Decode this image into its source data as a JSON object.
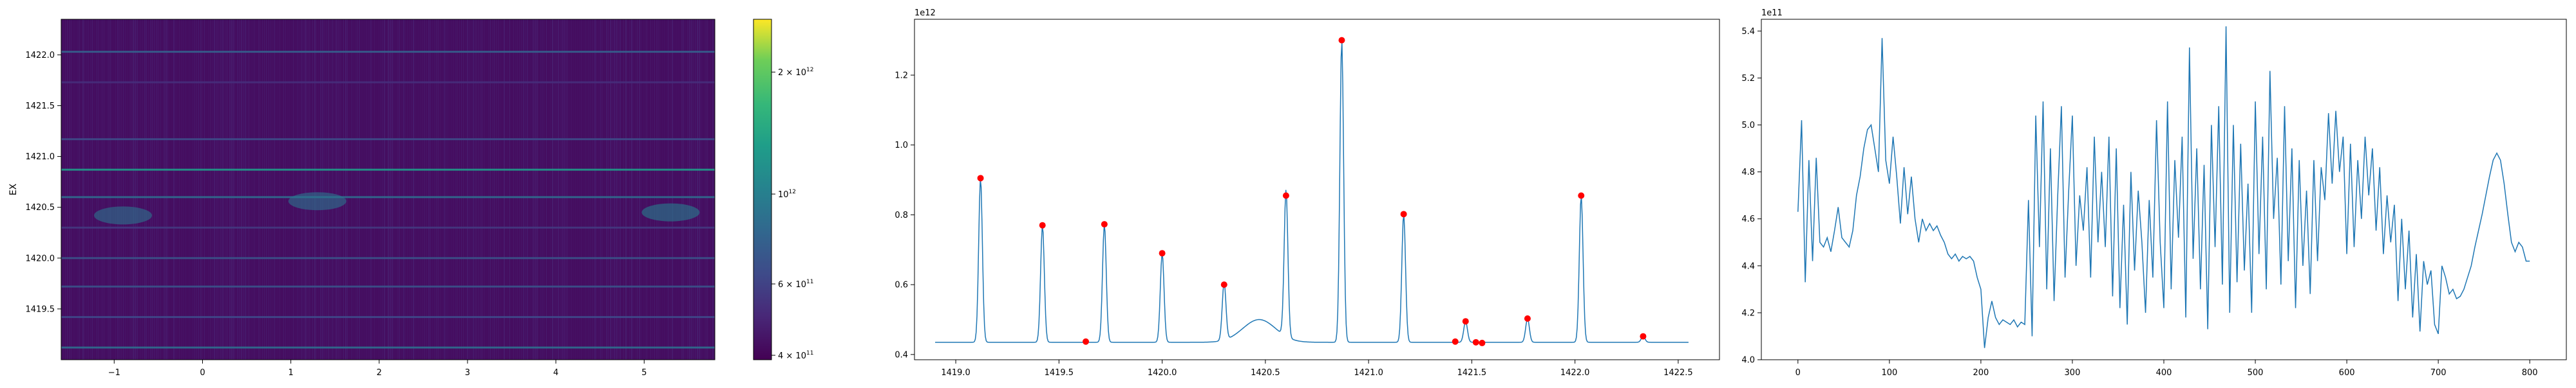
{
  "colors": {
    "line": "#1f77b4",
    "peak_marker": "#ff0000",
    "heatmap_low": "#440154",
    "heatmap_high": "#fde725"
  },
  "chart_data": [
    {
      "type": "heatmap",
      "ylabel": "EX",
      "xlim": [
        -1.6,
        5.8
      ],
      "ylim": [
        1419.0,
        1422.35
      ],
      "x_ticks": [
        -1,
        0,
        1,
        2,
        3,
        4,
        5
      ],
      "y_ticks": [
        1419.5,
        1420.0,
        1420.5,
        1421.0,
        1421.5,
        1422.0
      ],
      "x_tick_labels": [
        "−1",
        "0",
        "1",
        "2",
        "3",
        "4",
        "5"
      ],
      "y_tick_labels": [
        "1419.5",
        "1420.0",
        "1420.5",
        "1421.0",
        "1421.5",
        "1422.0"
      ],
      "colorscale": "viridis",
      "color_scale_type": "log",
      "colorbar_range": [
        390000000000.0,
        2700000000000.0
      ],
      "colorbar_ticks": [
        {
          "value": 400000000000.0,
          "base": "4 × 10",
          "exp": "11"
        },
        {
          "value": 600000000000.0,
          "base": "6 × 10",
          "exp": "11"
        },
        {
          "value": 1000000000000.0,
          "base": "10",
          "exp": "12"
        },
        {
          "value": 2000000000000.0,
          "base": "2 × 10",
          "exp": "12"
        }
      ],
      "horizontal_bands": [
        {
          "y": 1422.03,
          "value": 750000000000.0
        },
        {
          "y": 1421.73,
          "value": 520000000000.0
        },
        {
          "y": 1421.17,
          "value": 650000000000.0
        },
        {
          "y": 1420.87,
          "value": 1300000000000.0
        },
        {
          "y": 1420.6,
          "value": 850000000000.0
        },
        {
          "y": 1420.3,
          "value": 560000000000.0
        },
        {
          "y": 1420.0,
          "value": 680000000000.0
        },
        {
          "y": 1419.72,
          "value": 680000000000.0
        },
        {
          "y": 1419.42,
          "value": 630000000000.0
        },
        {
          "y": 1419.12,
          "value": 860000000000.0
        }
      ],
      "blobs": [
        {
          "x": -0.9,
          "y": 1420.42,
          "value": 900000000000.0
        },
        {
          "x": 1.3,
          "y": 1420.56,
          "value": 900000000000.0
        },
        {
          "x": 5.3,
          "y": 1420.45,
          "value": 1000000000000.0
        }
      ]
    },
    {
      "type": "line",
      "offset_label": "1e12",
      "xlim": [
        1418.8,
        1422.7
      ],
      "ylim": [
        0.385,
        1.36
      ],
      "x_ticks": [
        1419.0,
        1419.5,
        1420.0,
        1420.5,
        1421.0,
        1421.5,
        1422.0,
        1422.5
      ],
      "x_tick_labels": [
        "1419.0",
        "1419.5",
        "1420.0",
        "1420.5",
        "1421.0",
        "1421.5",
        "1422.0",
        "1422.5"
      ],
      "y_ticks": [
        0.4,
        0.6,
        0.8,
        1.0,
        1.2
      ],
      "y_tick_labels": [
        "0.4",
        "0.6",
        "0.8",
        "1.0",
        "1.2"
      ],
      "baseline": 0.435,
      "x_start": 1418.9,
      "x_end": 1422.55,
      "peaks": [
        {
          "x": 1419.12,
          "y": 0.905
        },
        {
          "x": 1419.42,
          "y": 0.77
        },
        {
          "x": 1419.72,
          "y": 0.773
        },
        {
          "x": 1420.0,
          "y": 0.69
        },
        {
          "x": 1420.3,
          "y": 0.6
        },
        {
          "x": 1420.6,
          "y": 0.855
        },
        {
          "x": 1420.87,
          "y": 1.3
        },
        {
          "x": 1421.17,
          "y": 0.802
        },
        {
          "x": 1421.47,
          "y": 0.495
        },
        {
          "x": 1421.77,
          "y": 0.503
        },
        {
          "x": 1422.03,
          "y": 0.855
        },
        {
          "x": 1422.33,
          "y": 0.452
        }
      ],
      "bump": {
        "x": 1420.47,
        "y": 0.5,
        "width": 0.08
      },
      "markers": [
        {
          "x": 1419.12,
          "y": 0.905
        },
        {
          "x": 1419.42,
          "y": 0.77
        },
        {
          "x": 1419.63,
          "y": 0.437
        },
        {
          "x": 1419.72,
          "y": 0.773
        },
        {
          "x": 1420.0,
          "y": 0.69
        },
        {
          "x": 1420.3,
          "y": 0.6
        },
        {
          "x": 1420.6,
          "y": 0.855
        },
        {
          "x": 1420.87,
          "y": 1.3
        },
        {
          "x": 1421.17,
          "y": 0.802
        },
        {
          "x": 1421.42,
          "y": 0.437
        },
        {
          "x": 1421.47,
          "y": 0.495
        },
        {
          "x": 1421.52,
          "y": 0.435
        },
        {
          "x": 1421.55,
          "y": 0.433
        },
        {
          "x": 1421.77,
          "y": 0.503
        },
        {
          "x": 1422.03,
          "y": 0.855
        },
        {
          "x": 1422.33,
          "y": 0.452
        }
      ]
    },
    {
      "type": "line",
      "offset_label": "1e11",
      "xlim": [
        -40,
        840
      ],
      "ylim": [
        4.0,
        5.45
      ],
      "x_ticks": [
        0,
        100,
        200,
        300,
        400,
        500,
        600,
        700,
        800
      ],
      "x_tick_labels": [
        "0",
        "100",
        "200",
        "300",
        "400",
        "500",
        "600",
        "700",
        "800"
      ],
      "y_ticks": [
        4.0,
        4.2,
        4.4,
        4.6,
        4.8,
        5.0,
        5.2,
        5.4
      ],
      "y_tick_labels": [
        "4.0",
        "4.2",
        "4.4",
        "4.6",
        "4.8",
        "5.0",
        "5.2",
        "5.4"
      ],
      "series_points": [
        [
          0,
          4.63
        ],
        [
          4,
          5.02
        ],
        [
          8,
          4.33
        ],
        [
          12,
          4.85
        ],
        [
          16,
          4.42
        ],
        [
          20,
          4.86
        ],
        [
          24,
          4.5
        ],
        [
          28,
          4.48
        ],
        [
          32,
          4.52
        ],
        [
          36,
          4.46
        ],
        [
          40,
          4.55
        ],
        [
          44,
          4.65
        ],
        [
          48,
          4.52
        ],
        [
          52,
          4.5
        ],
        [
          56,
          4.48
        ],
        [
          60,
          4.55
        ],
        [
          64,
          4.7
        ],
        [
          68,
          4.78
        ],
        [
          72,
          4.9
        ],
        [
          76,
          4.98
        ],
        [
          80,
          5.0
        ],
        [
          84,
          4.9
        ],
        [
          88,
          4.8
        ],
        [
          92,
          5.37
        ],
        [
          96,
          4.85
        ],
        [
          100,
          4.75
        ],
        [
          104,
          4.95
        ],
        [
          108,
          4.78
        ],
        [
          112,
          4.58
        ],
        [
          116,
          4.82
        ],
        [
          120,
          4.62
        ],
        [
          124,
          4.78
        ],
        [
          128,
          4.6
        ],
        [
          132,
          4.5
        ],
        [
          136,
          4.6
        ],
        [
          140,
          4.55
        ],
        [
          144,
          4.58
        ],
        [
          148,
          4.55
        ],
        [
          152,
          4.57
        ],
        [
          156,
          4.53
        ],
        [
          160,
          4.5
        ],
        [
          164,
          4.45
        ],
        [
          168,
          4.43
        ],
        [
          172,
          4.45
        ],
        [
          176,
          4.42
        ],
        [
          180,
          4.44
        ],
        [
          184,
          4.43
        ],
        [
          188,
          4.44
        ],
        [
          192,
          4.42
        ],
        [
          196,
          4.35
        ],
        [
          200,
          4.3
        ],
        [
          204,
          4.05
        ],
        [
          208,
          4.18
        ],
        [
          212,
          4.25
        ],
        [
          216,
          4.18
        ],
        [
          220,
          4.15
        ],
        [
          224,
          4.17
        ],
        [
          228,
          4.16
        ],
        [
          232,
          4.15
        ],
        [
          236,
          4.17
        ],
        [
          240,
          4.14
        ],
        [
          244,
          4.16
        ],
        [
          248,
          4.15
        ],
        [
          252,
          4.68
        ],
        [
          256,
          4.1
        ],
        [
          260,
          5.04
        ],
        [
          264,
          4.48
        ],
        [
          268,
          5.1
        ],
        [
          272,
          4.3
        ],
        [
          276,
          4.9
        ],
        [
          280,
          4.25
        ],
        [
          284,
          4.7
        ],
        [
          288,
          5.08
        ],
        [
          292,
          4.35
        ],
        [
          296,
          4.72
        ],
        [
          300,
          5.04
        ],
        [
          304,
          4.4
        ],
        [
          308,
          4.7
        ],
        [
          312,
          4.55
        ],
        [
          316,
          4.82
        ],
        [
          320,
          4.35
        ],
        [
          324,
          4.95
        ],
        [
          328,
          4.5
        ],
        [
          332,
          4.8
        ],
        [
          336,
          4.48
        ],
        [
          340,
          4.95
        ],
        [
          344,
          4.27
        ],
        [
          348,
          4.9
        ],
        [
          352,
          4.22
        ],
        [
          356,
          4.66
        ],
        [
          360,
          4.15
        ],
        [
          364,
          4.8
        ],
        [
          368,
          4.38
        ],
        [
          372,
          4.72
        ],
        [
          376,
          4.5
        ],
        [
          380,
          4.2
        ],
        [
          384,
          4.68
        ],
        [
          388,
          4.35
        ],
        [
          392,
          5.02
        ],
        [
          396,
          4.5
        ],
        [
          400,
          4.22
        ],
        [
          404,
          5.1
        ],
        [
          408,
          4.3
        ],
        [
          412,
          4.85
        ],
        [
          416,
          4.52
        ],
        [
          420,
          4.95
        ],
        [
          424,
          4.18
        ],
        [
          428,
          5.33
        ],
        [
          432,
          4.43
        ],
        [
          436,
          4.9
        ],
        [
          440,
          4.3
        ],
        [
          444,
          4.83
        ],
        [
          448,
          4.13
        ],
        [
          452,
          5.0
        ],
        [
          456,
          4.48
        ],
        [
          460,
          5.08
        ],
        [
          464,
          4.32
        ],
        [
          468,
          5.42
        ],
        [
          472,
          4.2
        ],
        [
          476,
          5.0
        ],
        [
          480,
          4.33
        ],
        [
          484,
          4.92
        ],
        [
          488,
          4.38
        ],
        [
          492,
          4.75
        ],
        [
          496,
          4.2
        ],
        [
          500,
          5.1
        ],
        [
          504,
          4.45
        ],
        [
          508,
          4.95
        ],
        [
          512,
          4.3
        ],
        [
          516,
          5.23
        ],
        [
          520,
          4.6
        ],
        [
          524,
          4.86
        ],
        [
          528,
          4.32
        ],
        [
          532,
          5.08
        ],
        [
          536,
          4.42
        ],
        [
          540,
          4.9
        ],
        [
          544,
          4.22
        ],
        [
          548,
          4.85
        ],
        [
          552,
          4.4
        ],
        [
          556,
          4.72
        ],
        [
          560,
          4.28
        ],
        [
          564,
          4.85
        ],
        [
          568,
          4.42
        ],
        [
          572,
          4.82
        ],
        [
          576,
          4.68
        ],
        [
          580,
          5.05
        ],
        [
          584,
          4.75
        ],
        [
          588,
          5.06
        ],
        [
          592,
          4.8
        ],
        [
          596,
          4.95
        ],
        [
          600,
          4.45
        ],
        [
          604,
          4.92
        ],
        [
          608,
          4.48
        ],
        [
          612,
          4.85
        ],
        [
          616,
          4.6
        ],
        [
          620,
          4.95
        ],
        [
          624,
          4.7
        ],
        [
          628,
          4.9
        ],
        [
          632,
          4.55
        ],
        [
          636,
          4.82
        ],
        [
          640,
          4.45
        ],
        [
          644,
          4.7
        ],
        [
          648,
          4.5
        ],
        [
          652,
          4.66
        ],
        [
          656,
          4.25
        ],
        [
          660,
          4.6
        ],
        [
          664,
          4.3
        ],
        [
          668,
          4.55
        ],
        [
          672,
          4.18
        ],
        [
          676,
          4.45
        ],
        [
          680,
          4.12
        ],
        [
          684,
          4.42
        ],
        [
          688,
          4.32
        ],
        [
          692,
          4.38
        ],
        [
          696,
          4.15
        ],
        [
          700,
          4.11
        ],
        [
          704,
          4.4
        ],
        [
          708,
          4.35
        ],
        [
          712,
          4.28
        ],
        [
          716,
          4.3
        ],
        [
          720,
          4.26
        ],
        [
          724,
          4.27
        ],
        [
          728,
          4.3
        ],
        [
          732,
          4.35
        ],
        [
          736,
          4.4
        ],
        [
          740,
          4.48
        ],
        [
          744,
          4.55
        ],
        [
          748,
          4.62
        ],
        [
          752,
          4.7
        ],
        [
          756,
          4.78
        ],
        [
          760,
          4.85
        ],
        [
          764,
          4.88
        ],
        [
          768,
          4.85
        ],
        [
          772,
          4.75
        ],
        [
          776,
          4.62
        ],
        [
          780,
          4.5
        ],
        [
          784,
          4.46
        ],
        [
          788,
          4.5
        ],
        [
          792,
          4.48
        ],
        [
          796,
          4.42
        ],
        [
          800,
          4.42
        ]
      ]
    }
  ]
}
